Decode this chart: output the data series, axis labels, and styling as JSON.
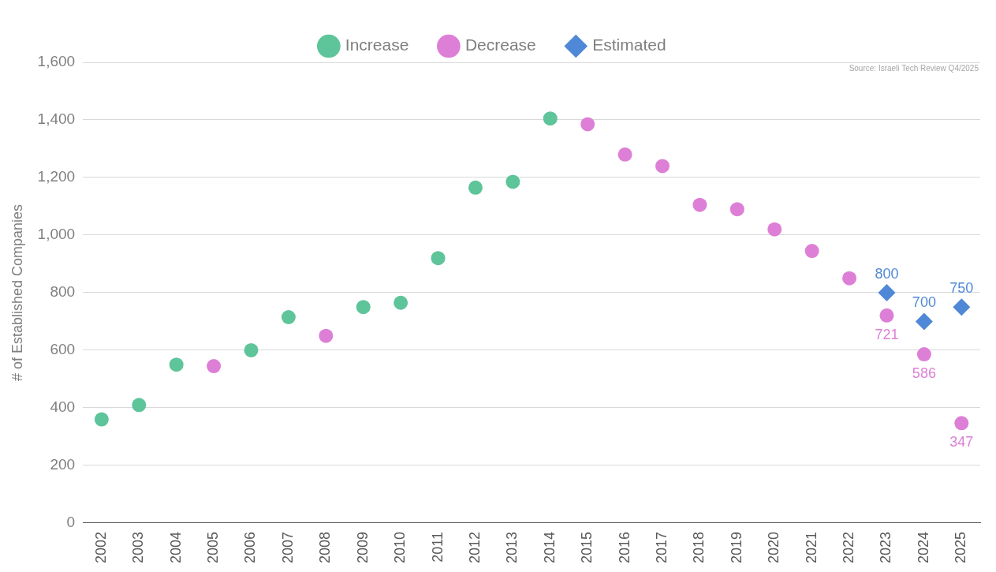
{
  "chart_data": {
    "type": "scatter",
    "ylabel": "# of Established Companies",
    "categories": [
      "2002",
      "2003",
      "2004",
      "2005",
      "2006",
      "2007",
      "2008",
      "2009",
      "2010",
      "2011",
      "2012",
      "2013",
      "2014",
      "2015",
      "2016",
      "2017",
      "2018",
      "2019",
      "2020",
      "2021",
      "2022",
      "2023",
      "2024",
      "2025"
    ],
    "series": [
      {
        "name": "Increase",
        "color": "#5ec49a",
        "marker": "circle",
        "values": [
          360,
          410,
          550,
          null,
          600,
          715,
          null,
          750,
          765,
          920,
          1165,
          1185,
          1405,
          null,
          null,
          null,
          null,
          null,
          null,
          null,
          null,
          null,
          null,
          null
        ]
      },
      {
        "name": "Decrease",
        "color": "#dd7fd6",
        "marker": "circle",
        "values": [
          null,
          null,
          null,
          545,
          null,
          null,
          650,
          null,
          null,
          null,
          null,
          null,
          null,
          1385,
          1280,
          1240,
          1105,
          1090,
          1020,
          945,
          850,
          721,
          586,
          347
        ],
        "value_labels": [
          null,
          null,
          null,
          null,
          null,
          null,
          null,
          null,
          null,
          null,
          null,
          null,
          null,
          null,
          null,
          null,
          null,
          null,
          null,
          null,
          null,
          "721",
          "586",
          "347"
        ]
      },
      {
        "name": "Estimated",
        "color": "#4f88d6",
        "marker": "diamond",
        "values": [
          null,
          null,
          null,
          null,
          null,
          null,
          null,
          null,
          null,
          null,
          null,
          null,
          null,
          null,
          null,
          null,
          null,
          null,
          null,
          null,
          null,
          800,
          700,
          750
        ],
        "value_labels": [
          null,
          null,
          null,
          null,
          null,
          null,
          null,
          null,
          null,
          null,
          null,
          null,
          null,
          null,
          null,
          null,
          null,
          null,
          null,
          null,
          null,
          "800",
          "700",
          "750"
        ]
      }
    ],
    "ylim": [
      0,
      1600
    ],
    "yticks": [
      0,
      200,
      400,
      600,
      800,
      {
        "value": 1000,
        "label": "1,000"
      },
      {
        "value": 1200,
        "label": "1,200"
      },
      {
        "value": 1400,
        "label": "1,400"
      },
      {
        "value": 1600,
        "label": "1,600"
      }
    ],
    "grid": "y",
    "legend": "top",
    "annotations": [
      "Source: Israeli Tech Review Q4/2025"
    ]
  }
}
